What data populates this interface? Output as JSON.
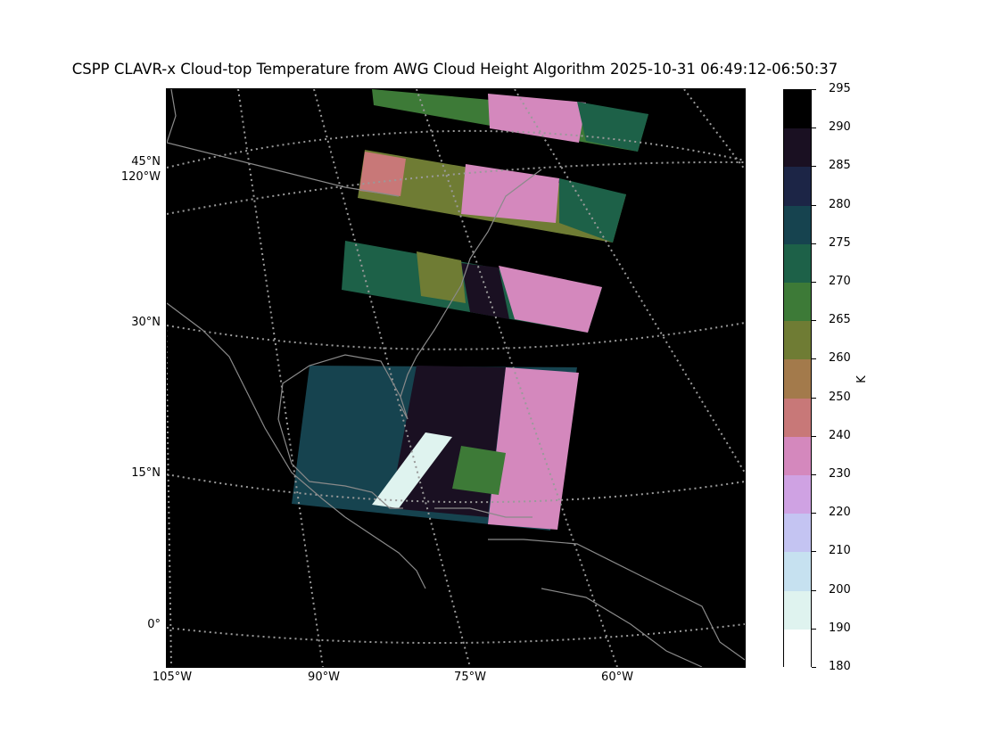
{
  "title": "CSPP CLAVR-x Cloud-top Temperature from AWG Cloud Height Algorithm 2025-10-31 06:49:12-06:50:37",
  "map": {
    "background": "#000000",
    "coast_color": "#8a8a8a",
    "grid_color": "#9a9a9a",
    "lat_labels": [
      "45°N",
      "120°W",
      "30°N",
      "15°N",
      "0°"
    ],
    "lon_labels": [
      "105°W",
      "90°W",
      "75°W",
      "60°W"
    ]
  },
  "colorbar": {
    "unit": "K",
    "ticks": [
      "295",
      "290",
      "285",
      "280",
      "275",
      "270",
      "265",
      "260",
      "250",
      "240",
      "230",
      "220",
      "210",
      "200",
      "190",
      "180"
    ],
    "colors_top_to_bottom": [
      "#000000",
      "#1a1022",
      "#1c2546",
      "#16434f",
      "#1d6148",
      "#3d7a37",
      "#6f7c34",
      "#a37a4b",
      "#c87878",
      "#d488bd",
      "#cfa2e3",
      "#c4c4f2",
      "#c6e1f0",
      "#dff3ef",
      "#ffffff"
    ]
  }
}
